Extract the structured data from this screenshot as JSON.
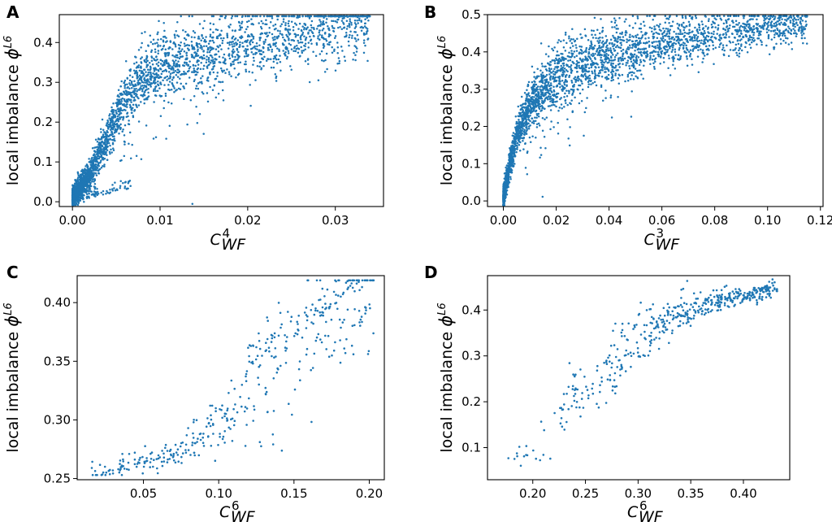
{
  "colors": {
    "points": "#1f77b4",
    "axes": "#000000",
    "background": "#ffffff"
  },
  "chart_data": [
    {
      "panel": "A",
      "type": "scatter",
      "xlabel_base": "C",
      "xlabel_sup": "4",
      "xlabel_sub": "WF",
      "ylabel": "local imbalance ",
      "ylabel_symbol": "ϕ",
      "ylabel_sup": "L6",
      "xlim": [
        -0.0015,
        0.0355
      ],
      "ylim": [
        -0.012,
        0.47
      ],
      "xticks": [
        0.0,
        0.01,
        0.02,
        0.03
      ],
      "xtick_labels": [
        "0.00",
        "0.01",
        "0.02",
        "0.03"
      ],
      "yticks": [
        0.0,
        0.1,
        0.2,
        0.3,
        0.4
      ],
      "ytick_labels": [
        "0.0",
        "0.1",
        "0.2",
        "0.3",
        "0.4"
      ],
      "n_points": 3000,
      "trend": [
        [
          0.0,
          0.01
        ],
        [
          0.002,
          0.07
        ],
        [
          0.004,
          0.16
        ],
        [
          0.006,
          0.26
        ],
        [
          0.008,
          0.31
        ],
        [
          0.01,
          0.34
        ],
        [
          0.015,
          0.37
        ],
        [
          0.02,
          0.39
        ],
        [
          0.025,
          0.42
        ],
        [
          0.03,
          0.44
        ],
        [
          0.034,
          0.45
        ]
      ]
    },
    {
      "panel": "B",
      "type": "scatter",
      "xlabel_base": "C",
      "xlabel_sup": "3",
      "xlabel_sub": "WF",
      "ylabel": "local imbalance ",
      "ylabel_symbol": "ϕ",
      "ylabel_sup": "L6",
      "xlim": [
        -0.006,
        0.121
      ],
      "ylim": [
        -0.015,
        0.5
      ],
      "xticks": [
        0.0,
        0.02,
        0.04,
        0.06,
        0.08,
        0.1,
        0.12
      ],
      "xtick_labels": [
        "0.00",
        "0.02",
        "0.04",
        "0.06",
        "0.08",
        "0.10",
        "0.12"
      ],
      "yticks": [
        0.0,
        0.1,
        0.2,
        0.3,
        0.4,
        0.5
      ],
      "ytick_labels": [
        "0.0",
        "0.1",
        "0.2",
        "0.3",
        "0.4",
        "0.5"
      ],
      "n_points": 3000,
      "trend": [
        [
          0.0,
          0.01
        ],
        [
          0.002,
          0.08
        ],
        [
          0.005,
          0.17
        ],
        [
          0.01,
          0.26
        ],
        [
          0.02,
          0.33
        ],
        [
          0.03,
          0.37
        ],
        [
          0.04,
          0.39
        ],
        [
          0.06,
          0.42
        ],
        [
          0.08,
          0.45
        ],
        [
          0.1,
          0.465
        ],
        [
          0.115,
          0.475
        ]
      ]
    },
    {
      "panel": "C",
      "type": "scatter",
      "xlabel_base": "C",
      "xlabel_sup": "6",
      "xlabel_sub": "WF",
      "ylabel": "local imbalance ",
      "ylabel_symbol": "ϕ",
      "ylabel_sup": "L6",
      "xlim": [
        0.006,
        0.21
      ],
      "ylim": [
        0.249,
        0.423
      ],
      "xticks": [
        0.05,
        0.1,
        0.15,
        0.2
      ],
      "xtick_labels": [
        "0.05",
        "0.10",
        "0.15",
        "0.20"
      ],
      "yticks": [
        0.25,
        0.3,
        0.35,
        0.4
      ],
      "ytick_labels": [
        "0.25",
        "0.30",
        "0.35",
        "0.40"
      ],
      "n_points": 420,
      "trend": [
        [
          0.015,
          0.255
        ],
        [
          0.05,
          0.265
        ],
        [
          0.075,
          0.272
        ],
        [
          0.1,
          0.3
        ],
        [
          0.125,
          0.33
        ],
        [
          0.15,
          0.35
        ],
        [
          0.175,
          0.375
        ],
        [
          0.2,
          0.405
        ]
      ]
    },
    {
      "panel": "D",
      "type": "scatter",
      "xlabel_base": "C",
      "xlabel_sup": "6",
      "xlabel_sub": "WF",
      "ylabel": "local imbalance ",
      "ylabel_symbol": "ϕ",
      "ylabel_sup": "L6",
      "xlim": [
        0.157,
        0.444
      ],
      "ylim": [
        0.03,
        0.475
      ],
      "xticks": [
        0.2,
        0.25,
        0.3,
        0.35,
        0.4
      ],
      "xtick_labels": [
        "0.20",
        "0.25",
        "0.30",
        "0.35",
        "0.40"
      ],
      "yticks": [
        0.1,
        0.2,
        0.3,
        0.4
      ],
      "ytick_labels": [
        "0.1",
        "0.2",
        "0.3",
        "0.4"
      ],
      "n_points": 480,
      "trend": [
        [
          0.17,
          0.055
        ],
        [
          0.21,
          0.1
        ],
        [
          0.23,
          0.19
        ],
        [
          0.26,
          0.25
        ],
        [
          0.3,
          0.33
        ],
        [
          0.33,
          0.38
        ],
        [
          0.36,
          0.41
        ],
        [
          0.4,
          0.43
        ],
        [
          0.43,
          0.445
        ]
      ]
    }
  ]
}
